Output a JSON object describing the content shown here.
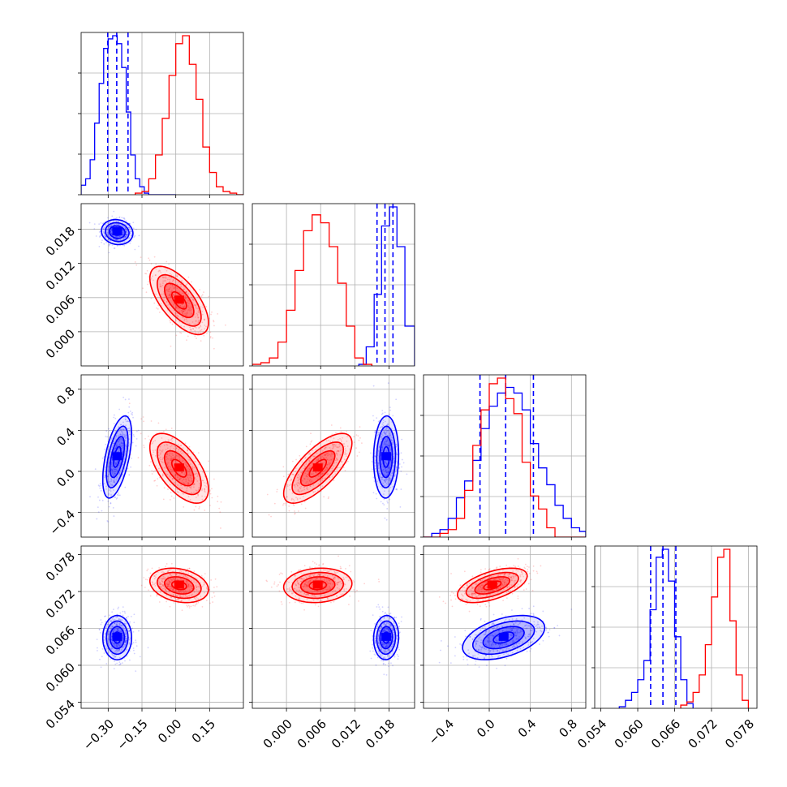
{
  "colors": {
    "blue": "#0000ff",
    "red": "#ff0000",
    "grid": "#b0b0b0",
    "axis": "#000000"
  },
  "chart_data": {
    "type": "corner",
    "grid": true,
    "parameters": [
      {
        "range": [
          -0.42,
          0.3
        ],
        "ticks": [
          -0.3,
          -0.15,
          0.0,
          0.15
        ],
        "tick_labels": [
          "−0.30",
          "−0.15",
          "0.00",
          "0.15"
        ]
      },
      {
        "range": [
          -0.006,
          0.0225
        ],
        "ticks": [
          0.0,
          0.006,
          0.012,
          0.018
        ],
        "tick_labels": [
          "0.000",
          "0.006",
          "0.012",
          "0.018"
        ]
      },
      {
        "range": [
          -0.64,
          0.94
        ],
        "ticks": [
          -0.4,
          0.0,
          0.4,
          0.8
        ],
        "tick_labels": [
          "−0.4",
          "0.0",
          "0.4",
          "0.8"
        ]
      },
      {
        "range": [
          0.053,
          0.0794
        ],
        "ticks": [
          0.054,
          0.06,
          0.066,
          0.072,
          0.078
        ],
        "tick_labels": [
          "0.054",
          "0.060",
          "0.066",
          "0.072",
          "0.078"
        ]
      }
    ],
    "series": [
      {
        "color": "blue",
        "hist_1d": [
          {
            "edges": [
              -0.42,
              -0.4,
              -0.38,
              -0.36,
              -0.34,
              -0.32,
              -0.3,
              -0.28,
              -0.26,
              -0.24,
              -0.22,
              -0.2,
              -0.18,
              -0.16,
              -0.14,
              -0.12,
              -0.1,
              -0.08,
              -0.06,
              -0.04,
              -0.02,
              0.0
            ],
            "counts": [
              0.06,
              0.1,
              0.22,
              0.45,
              0.7,
              0.92,
              0.98,
              1.0,
              0.95,
              0.8,
              0.52,
              0.25,
              0.1,
              0.05,
              0.01,
              0.0,
              0.0,
              0.0,
              0.0,
              0.0,
              0.0
            ]
          },
          {
            "edges": [
              0.0127,
              0.014,
              0.0154,
              0.0167,
              0.0181,
              0.0194,
              0.0208,
              0.0225
            ],
            "counts": [
              0.01,
              0.12,
              0.45,
              0.88,
              1.0,
              0.75,
              0.25
            ]
          },
          {
            "edges": [
              -0.64,
              -0.56,
              -0.48,
              -0.4,
              -0.32,
              -0.24,
              -0.16,
              -0.08,
              0.0,
              0.08,
              0.16,
              0.24,
              0.32,
              0.4,
              0.48,
              0.56,
              0.64,
              0.72,
              0.8,
              0.88,
              0.94
            ],
            "counts": [
              0.0,
              0.02,
              0.04,
              0.1,
              0.21,
              0.3,
              0.41,
              0.58,
              0.7,
              0.77,
              0.8,
              0.77,
              0.68,
              0.5,
              0.37,
              0.28,
              0.17,
              0.1,
              0.05,
              0.03
            ]
          },
          {
            "edges": [
              0.057,
              0.058,
              0.059,
              0.06,
              0.061,
              0.062,
              0.063,
              0.064,
              0.065,
              0.066,
              0.067,
              0.068,
              0.069
            ],
            "counts": [
              0.01,
              0.05,
              0.1,
              0.18,
              0.3,
              0.62,
              0.95,
              1.0,
              0.8,
              0.45,
              0.18,
              0.03
            ]
          }
        ],
        "quantiles": [
          [
            -0.302,
            -0.262,
            -0.212
          ],
          [
            0.0159,
            0.0173,
            0.0187
          ],
          [
            -0.09,
            0.16,
            0.43
          ],
          [
            0.0621,
            0.0641,
            0.0662
          ]
        ],
        "centroid": [
          -0.26,
          0.0175,
          0.14,
          0.0645
        ],
        "scatter_pairs": {
          "1,0": {
            "spread": [
              0.035,
              0.0011
            ],
            "rho": -0.1
          },
          "2,0": {
            "spread": [
              0.032,
              0.2
            ],
            "rho": 0.55
          },
          "2,1": {
            "spread": [
              0.0011,
              0.2
            ],
            "rho": 0.05
          },
          "3,0": {
            "spread": [
              0.032,
              0.0018
            ],
            "rho": 0.0
          },
          "3,1": {
            "spread": [
              0.0011,
              0.0018
            ],
            "rho": 0.05
          },
          "3,2": {
            "spread": [
              0.2,
              0.0018
            ],
            "rho": 0.45
          }
        }
      },
      {
        "color": "red",
        "hist_1d": [
          {
            "edges": [
              -0.18,
              -0.15,
              -0.12,
              -0.09,
              -0.06,
              -0.03,
              0.0,
              0.03,
              0.06,
              0.09,
              0.12,
              0.15,
              0.18,
              0.21,
              0.24,
              0.27,
              0.3
            ],
            "counts": [
              0.01,
              0.02,
              0.1,
              0.25,
              0.48,
              0.75,
              0.95,
              1.0,
              0.82,
              0.6,
              0.3,
              0.14,
              0.05,
              0.02,
              0.01,
              0.0
            ]
          },
          {
            "edges": [
              -0.006,
              -0.0045,
              -0.003,
              -0.0015,
              0.0,
              0.0015,
              0.003,
              0.0045,
              0.006,
              0.0075,
              0.009,
              0.0105,
              0.012,
              0.0135,
              0.015
            ],
            "counts": [
              0.01,
              0.02,
              0.05,
              0.15,
              0.35,
              0.6,
              0.85,
              0.95,
              0.9,
              0.75,
              0.52,
              0.25,
              0.05,
              0.01
            ]
          },
          {
            "edges": [
              -0.64,
              -0.56,
              -0.48,
              -0.4,
              -0.32,
              -0.24,
              -0.16,
              -0.08,
              0.0,
              0.08,
              0.16,
              0.24,
              0.32,
              0.4,
              0.48,
              0.56,
              0.64,
              0.72,
              0.8,
              0.88,
              0.94
            ],
            "counts": [
              0.0,
              0.0,
              0.02,
              0.04,
              0.1,
              0.25,
              0.49,
              0.68,
              0.82,
              0.85,
              0.74,
              0.66,
              0.4,
              0.22,
              0.15,
              0.05,
              0.0,
              0.0,
              0.0,
              0.0
            ]
          },
          {
            "edges": [
              0.067,
              0.068,
              0.069,
              0.07,
              0.071,
              0.072,
              0.073,
              0.074,
              0.075,
              0.076,
              0.077,
              0.078
            ],
            "counts": [
              0.02,
              0.04,
              0.1,
              0.21,
              0.4,
              0.7,
              0.95,
              1.0,
              0.55,
              0.21,
              0.05
            ]
          }
        ],
        "centroid": [
          0.015,
          0.0055,
          0.03,
          0.073
        ],
        "scatter_pairs": {
          "1,0": {
            "spread": [
              0.065,
              0.003
            ],
            "rho": -0.65
          },
          "2,0": {
            "spread": [
              0.065,
              0.17
            ],
            "rho": -0.6
          },
          "2,1": {
            "spread": [
              0.003,
              0.17
            ],
            "rho": 0.72
          },
          "3,0": {
            "spread": [
              0.065,
              0.0014
            ],
            "rho": -0.25
          },
          "3,1": {
            "spread": [
              0.003,
              0.0014
            ],
            "rho": 0.1
          },
          "3,2": {
            "spread": [
              0.17,
              0.0014
            ],
            "rho": 0.55
          }
        }
      }
    ]
  }
}
